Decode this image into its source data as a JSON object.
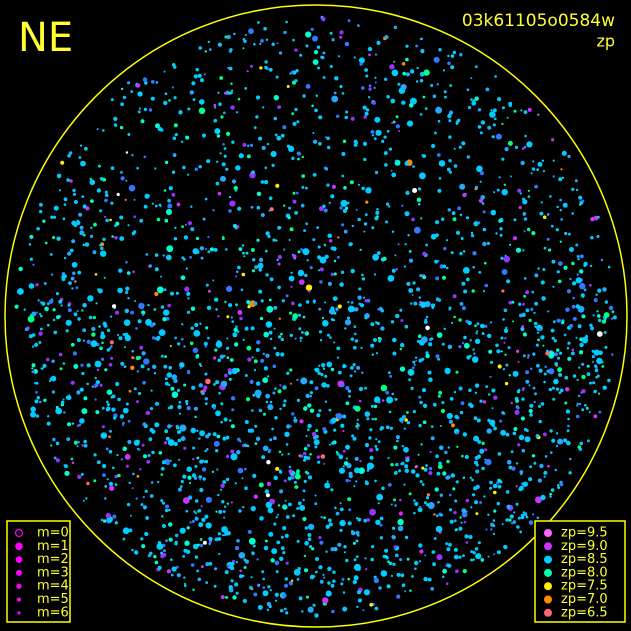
{
  "header": {
    "corner_label": "NE",
    "frame_id": "03k61105o0584w",
    "quantity": "zp"
  },
  "legend_magnitude": {
    "items": [
      "m=0",
      "m=1",
      "m=2",
      "m=3",
      "m=4",
      "m=5",
      "m=6"
    ],
    "color": "#ff00ff"
  },
  "legend_zp": {
    "items": [
      {
        "label": "zp=9.5",
        "color": "#ff66ff"
      },
      {
        "label": "zp=9.0",
        "color": "#cc33ff"
      },
      {
        "label": "zp=8.5",
        "color": "#00ccff"
      },
      {
        "label": "zp=8.0",
        "color": "#00ffaa"
      },
      {
        "label": "zp=7.5",
        "color": "#ffee00"
      },
      {
        "label": "zp=7.0",
        "color": "#ff8800"
      },
      {
        "label": "zp=6.5",
        "color": "#ff6677"
      }
    ]
  }
}
